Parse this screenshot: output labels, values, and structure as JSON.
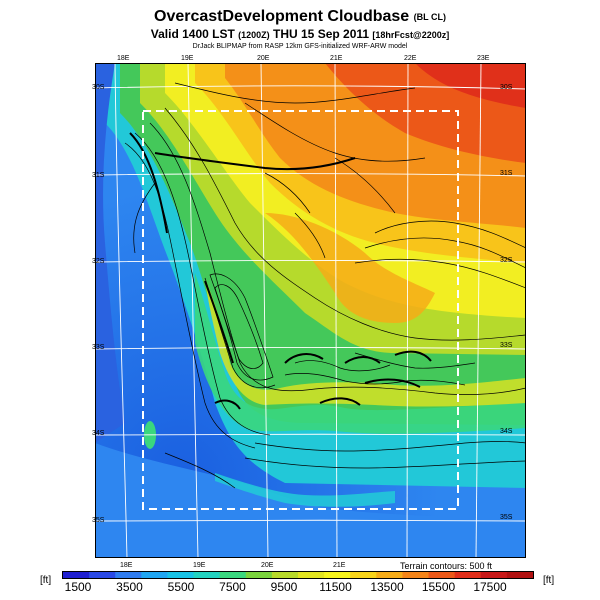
{
  "title": {
    "main": "OvercastDevelopment Cloudbase",
    "tag": "(BL CL)",
    "valid_main": "Valid 1400 LST",
    "valid_utc": "(1200Z)",
    "valid_date": "THU 15 Sep 2011",
    "forecast": "[18hrFcst@2200z]",
    "credit": "DrJack BLIPMAP from RASP 12km GFS-initialized WRF-ARW model"
  },
  "lon_labels_top": [
    "18E",
    "19E",
    "20E",
    "21E",
    "22E",
    "23E"
  ],
  "lon_labels_bottom": [
    "18E",
    "19E",
    "20E",
    "21E"
  ],
  "lat_labels_left": [
    "30S",
    "31S",
    "32S",
    "33S",
    "34S",
    "35S"
  ],
  "lat_labels_right": [
    "30S",
    "31S",
    "32S",
    "33S",
    "34S",
    "35S"
  ],
  "terrain_note": "Terrain contours: 500 ft",
  "colorbar": {
    "unit_left": "[ft]",
    "unit_right": "[ft]",
    "labels": [
      "1500",
      "3500",
      "5500",
      "7500",
      "9500",
      "11500",
      "13500",
      "15500",
      "17500"
    ],
    "colors": [
      "#1f1fd0",
      "#2a49e6",
      "#2f7cf0",
      "#20a6f2",
      "#18c3e6",
      "#22d2c0",
      "#3ad67e",
      "#7ad23c",
      "#b8da2a",
      "#e2e420",
      "#f6f41c",
      "#f8d41a",
      "#f6ac18",
      "#f48418",
      "#ec5818",
      "#e02e1a",
      "#c81818",
      "#b01010"
    ]
  },
  "map": {
    "field_colors": {
      "ocean_blue": "#2e86f0",
      "cyan": "#1fc8e8",
      "green": "#3cc85a",
      "yellow": "#f2ee22",
      "orange": "#f49018",
      "red": "#e8321a"
    }
  }
}
